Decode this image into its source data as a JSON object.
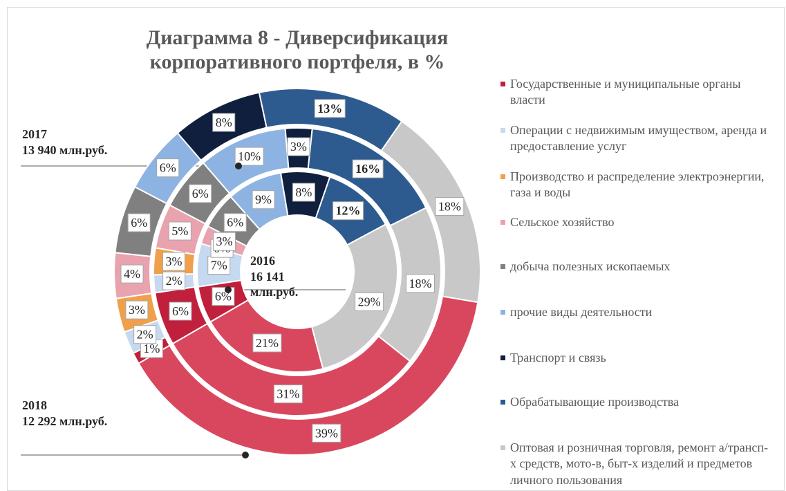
{
  "chart_data": {
    "type": "doughnut",
    "title": "Диаграмма 8 - Диверсификация корпоративного портфеля, в %",
    "categories": [
      "Государственные и муниципальные органы власти",
      "Операции с недвижимым имуществом, аренда и предоставление услуг",
      "Производство и распределение электроэнергии, газа и воды",
      "Сельское хозяйство",
      "добыча полезных ископаемых",
      "прочие виды деятельности",
      "Транспорт и связь",
      "Обрабатывающие производства",
      "Оптовая и розничная торговля, ремонт а/трансп-х средств, мото-в, быт-х изделий и предметов личного пользования",
      null
    ],
    "colors": [
      "#C0203C",
      "#C5D9F0",
      "#F0A04B",
      "#E8A3AE",
      "#808080",
      "#8DB3E2",
      "#0F1F3D",
      "#2E5B8F",
      "#C8C8C8",
      "#D9475E"
    ],
    "series": [
      {
        "name": "2016",
        "total": "16 141 млн.руб.",
        "values": [
          6,
          7,
          0,
          3,
          6,
          9,
          8,
          12,
          29,
          21
        ],
        "value_labels": [
          "6%",
          "7%",
          "0%",
          "3%",
          "6%",
          "9%",
          "8%",
          "12%",
          "29%",
          "21%"
        ]
      },
      {
        "name": "2017",
        "total": "13 940 млн.руб.",
        "values": [
          6,
          2,
          3,
          5,
          6,
          10,
          3,
          16,
          18,
          31
        ],
        "value_labels": [
          "6%",
          "2%",
          "3%",
          "5%",
          "6%",
          "10%",
          "3%",
          "16%",
          "18%",
          "31%"
        ]
      },
      {
        "name": "2018",
        "total": "12 292 млн.руб.",
        "values": [
          1,
          2,
          3,
          4,
          6,
          6,
          8,
          13,
          18,
          39
        ],
        "value_labels": [
          "1%",
          "2%",
          "3%",
          "4%",
          "6%",
          "6%",
          "8%",
          "13%",
          "18%",
          "39%"
        ]
      }
    ]
  }
}
